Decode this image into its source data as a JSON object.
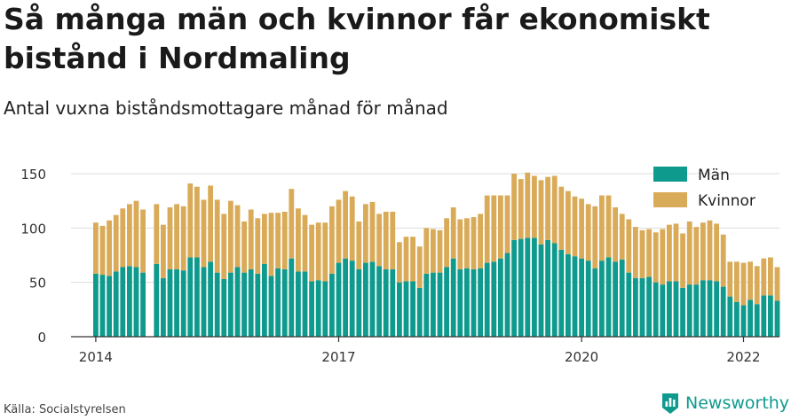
{
  "title": "Så många män och kvinnor får ekonomiskt bistånd i Nordmaling",
  "subtitle": "Antal vuxna biståndsmottagare månad för månad",
  "source": "Källa: Socialstyrelsen",
  "brand": "Newsworthy",
  "colors": {
    "man": "#0f9a8e",
    "kvinnor": "#d9ab58",
    "grid": "#dddddd",
    "axis": "#333333",
    "brand": "#0f9a8e"
  },
  "chart_data": {
    "type": "bar",
    "stacked": true,
    "start_month": "2014-01",
    "x_ticks": [
      "2014",
      "2017",
      "2020",
      "2022"
    ],
    "y_ticks": [
      0,
      50,
      100,
      150
    ],
    "ylim": [
      0,
      150
    ],
    "legend": {
      "position": "top-right",
      "entries": [
        "Män",
        "Kvinnor"
      ]
    },
    "series": [
      {
        "name": "Män",
        "values": [
          58,
          57,
          56,
          60,
          64,
          65,
          64,
          59,
          null,
          67,
          54,
          62,
          62,
          61,
          73,
          73,
          64,
          69,
          59,
          53,
          59,
          64,
          59,
          62,
          58,
          67,
          56,
          63,
          62,
          72,
          60,
          60,
          51,
          52,
          51,
          58,
          68,
          72,
          70,
          62,
          68,
          69,
          65,
          62,
          62,
          50,
          51,
          51,
          45,
          58,
          59,
          59,
          64,
          72,
          62,
          63,
          62,
          63,
          68,
          69,
          72,
          77,
          89,
          90,
          91,
          91,
          85,
          89,
          86,
          80,
          76,
          74,
          72,
          70,
          63,
          70,
          73,
          69,
          71,
          59,
          54,
          54,
          55,
          50,
          48,
          51,
          51,
          45,
          48,
          48,
          52,
          52,
          51,
          46,
          37,
          32,
          29,
          34,
          30,
          38,
          38,
          33
        ]
      },
      {
        "name": "Kvinnor",
        "values": [
          47,
          45,
          51,
          52,
          54,
          57,
          61,
          58,
          null,
          55,
          49,
          57,
          60,
          59,
          68,
          65,
          62,
          70,
          67,
          60,
          66,
          57,
          47,
          55,
          51,
          46,
          58,
          51,
          53,
          64,
          58,
          52,
          52,
          53,
          54,
          62,
          58,
          62,
          59,
          44,
          54,
          55,
          48,
          53,
          53,
          37,
          41,
          41,
          38,
          42,
          40,
          39,
          45,
          47,
          46,
          46,
          48,
          50,
          62,
          61,
          58,
          53,
          61,
          55,
          60,
          57,
          59,
          58,
          62,
          58,
          58,
          55,
          55,
          52,
          57,
          60,
          57,
          50,
          42,
          49,
          47,
          44,
          44,
          46,
          51,
          52,
          53,
          50,
          58,
          53,
          53,
          55,
          53,
          48,
          32,
          37,
          39,
          35,
          35,
          34,
          35,
          31
        ]
      }
    ]
  }
}
